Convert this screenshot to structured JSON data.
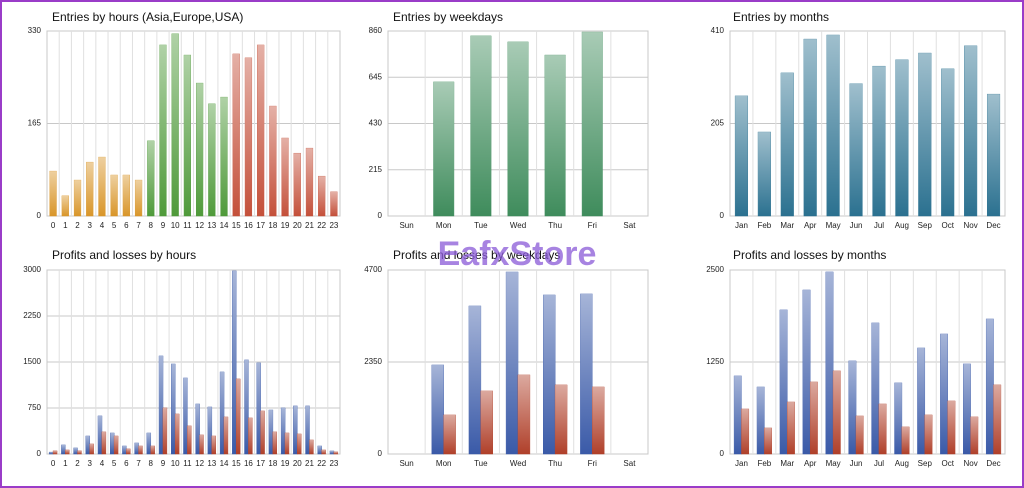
{
  "watermark": "EafxStore",
  "chart_data": [
    {
      "type": "bar",
      "title": "Entries by hours (Asia,Europe,USA)",
      "categories": [
        "0",
        "1",
        "2",
        "3",
        "4",
        "5",
        "6",
        "7",
        "8",
        "9",
        "10",
        "11",
        "12",
        "13",
        "14",
        "15",
        "16",
        "17",
        "18",
        "19",
        "20",
        "21",
        "22",
        "23"
      ],
      "values": [
        80,
        36,
        64,
        96,
        105,
        73,
        73,
        64,
        134,
        305,
        325,
        287,
        237,
        200,
        212,
        289,
        282,
        305,
        196,
        139,
        112,
        121,
        71,
        43
      ],
      "colors": [
        "#d9962a",
        "#d9962a",
        "#d9962a",
        "#d9962a",
        "#d9962a",
        "#d9962a",
        "#d9962a",
        "#d9962a",
        "#4f9a3a",
        "#4f9a3a",
        "#4f9a3a",
        "#4f9a3a",
        "#4f9a3a",
        "#4f9a3a",
        "#4f9a3a",
        "#c4503a",
        "#c4503a",
        "#c4503a",
        "#c4503a",
        "#c4503a",
        "#c4503a",
        "#c4503a",
        "#c4503a",
        "#c4503a"
      ],
      "ylim": [
        0,
        330
      ],
      "yticks": [
        0,
        165,
        330
      ],
      "grid": true
    },
    {
      "type": "bar",
      "title": "Entries by weekdays",
      "categories": [
        "Sun",
        "Mon",
        "Tue",
        "Wed",
        "Thu",
        "Fri",
        "Sat"
      ],
      "values": [
        0,
        623,
        837,
        809,
        748,
        855,
        0
      ],
      "color": "#3f8c5c",
      "ylim": [
        0,
        860
      ],
      "yticks": [
        0,
        215,
        430,
        645,
        860
      ],
      "grid": true
    },
    {
      "type": "bar",
      "title": "Entries by months",
      "categories": [
        "Jan",
        "Feb",
        "Mar",
        "Apr",
        "May",
        "Jun",
        "Jul",
        "Aug",
        "Sep",
        "Oct",
        "Nov",
        "Dec"
      ],
      "values": [
        266,
        186,
        317,
        392,
        401,
        293,
        332,
        346,
        361,
        326,
        377,
        270
      ],
      "color": "#2b7190",
      "ylim": [
        0,
        410
      ],
      "yticks": [
        0,
        205,
        410
      ],
      "grid": true
    },
    {
      "type": "bar",
      "title": "Profits and losses by hours",
      "categories": [
        "0",
        "1",
        "2",
        "3",
        "4",
        "5",
        "6",
        "7",
        "8",
        "9",
        "10",
        "11",
        "12",
        "13",
        "14",
        "15",
        "16",
        "17",
        "18",
        "19",
        "20",
        "21",
        "22",
        "23"
      ],
      "series": [
        {
          "color": "#3a5aa8",
          "values": [
            30,
            147,
            98,
            293,
            620,
            342,
            130,
            179,
            342,
            1598,
            1467,
            1239,
            815,
            766,
            1337,
            2984,
            1533,
            1484,
            717,
            750,
            783,
            783,
            130,
            49
          ]
        },
        {
          "color": "#b0402a",
          "values": [
            50,
            65,
            50,
            163,
            359,
            293,
            82,
            130,
            130,
            750,
            652,
            457,
            310,
            293,
            603,
            1223,
            587,
            701,
            359,
            342,
            326,
            228,
            65,
            33
          ]
        }
      ],
      "ylim": [
        0,
        3000
      ],
      "yticks": [
        0,
        750,
        1500,
        2250,
        3000
      ],
      "grid": true
    },
    {
      "type": "bar",
      "title": "Profits and losses by weekdays",
      "categories": [
        "Sun",
        "Mon",
        "Tue",
        "Wed",
        "Thu",
        "Fri",
        "Sat"
      ],
      "series": [
        {
          "color": "#3a5aa8",
          "values": [
            0,
            2273,
            3780,
            4648,
            4061,
            4087,
            0
          ]
        },
        {
          "color": "#b0402a",
          "values": [
            0,
            996,
            1609,
            2018,
            1763,
            1711,
            0
          ]
        }
      ],
      "ylim": [
        0,
        4700
      ],
      "yticks": [
        0,
        2350,
        4700
      ],
      "grid": true
    },
    {
      "type": "bar",
      "title": "Profits and losses by months",
      "categories": [
        "Jan",
        "Feb",
        "Mar",
        "Apr",
        "May",
        "Jun",
        "Jul",
        "Aug",
        "Sep",
        "Oct",
        "Nov",
        "Dec"
      ],
      "series": [
        {
          "color": "#3a5aa8",
          "values": [
            1060,
            910,
            1957,
            2228,
            2473,
            1264,
            1780,
            965,
            1440,
            1630,
            1223,
            1834
          ]
        },
        {
          "color": "#b0402a",
          "values": [
            611,
            353,
            706,
            978,
            1128,
            516,
            679,
            367,
            530,
            720,
            503,
            938
          ]
        }
      ],
      "ylim": [
        0,
        2500
      ],
      "yticks": [
        0,
        1250,
        2500
      ],
      "grid": true
    }
  ]
}
